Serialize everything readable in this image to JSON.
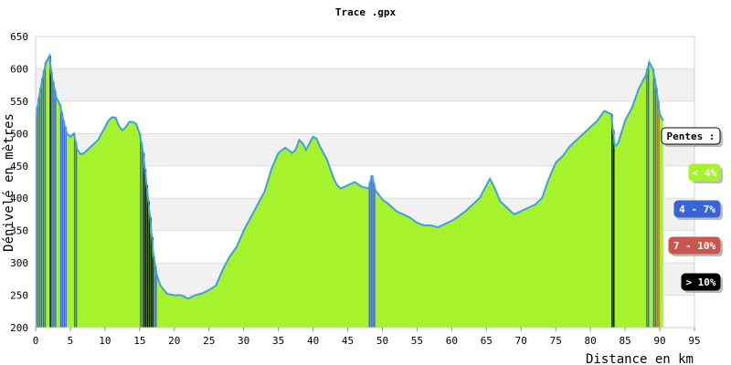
{
  "chart_data": {
    "type": "area",
    "title": "Trace .gpx",
    "xlabel": "Distance en km",
    "ylabel": "Dénivelé en mètres",
    "xlim": [
      0,
      95
    ],
    "ylim": [
      200,
      650
    ],
    "x_ticks": [
      0,
      5,
      10,
      15,
      20,
      25,
      30,
      35,
      40,
      45,
      50,
      55,
      60,
      65,
      70,
      75,
      80,
      85,
      90,
      95
    ],
    "y_ticks": [
      200,
      250,
      300,
      350,
      400,
      450,
      500,
      550,
      600,
      650
    ],
    "grid": "horizontal bands",
    "legend_position": "right",
    "legend": {
      "title": "Pentes :",
      "items": [
        {
          "label": "< 4%",
          "color": "#a6f22d"
        },
        {
          "label": "4 - 7%",
          "color": "#3b63d8"
        },
        {
          "label": "7 - 10%",
          "color": "#c8584f"
        },
        {
          "label": "> 10%",
          "color": "#000000"
        }
      ]
    },
    "series": [
      {
        "x": [
          0,
          0.5,
          1,
          1.5,
          2,
          2.3,
          2.6,
          3,
          3.5,
          4,
          4.5,
          5,
          5.5,
          6,
          6.5,
          7,
          8,
          9,
          10,
          10.5,
          11,
          11.5,
          12,
          12.5,
          13,
          13.5,
          14,
          14.5,
          15,
          15.5,
          16,
          16.5,
          17,
          17.5,
          18,
          18.5,
          19,
          20,
          21,
          22,
          23,
          24,
          25,
          26,
          27,
          28,
          29,
          30,
          31,
          32,
          33,
          34,
          35,
          36,
          37,
          37.5,
          38,
          38.5,
          39,
          39.5,
          40,
          40.5,
          41,
          41.5,
          42,
          42.5,
          43,
          43.5,
          44,
          45,
          46,
          47,
          48,
          48.5,
          49,
          50,
          51,
          52,
          53,
          54,
          55,
          56,
          57,
          58,
          59,
          60,
          61,
          62,
          63,
          64,
          65,
          65.5,
          66,
          66.5,
          67,
          68,
          69,
          70,
          71,
          72,
          73,
          74,
          75,
          76,
          77,
          78,
          79,
          80,
          81,
          82,
          83,
          83.5,
          84,
          85,
          86,
          87,
          88,
          88.5,
          89,
          89.5,
          90,
          90.5
        ],
        "y": [
          525,
          555,
          585,
          610,
          620,
          590,
          575,
          555,
          545,
          520,
          500,
          495,
          500,
          475,
          468,
          470,
          480,
          490,
          510,
          520,
          525,
          525,
          512,
          505,
          510,
          518,
          518,
          515,
          500,
          470,
          420,
          370,
          310,
          280,
          265,
          258,
          252,
          250,
          250,
          245,
          250,
          253,
          258,
          265,
          290,
          310,
          325,
          350,
          370,
          390,
          410,
          445,
          470,
          478,
          470,
          475,
          490,
          485,
          475,
          485,
          495,
          492,
          480,
          470,
          460,
          445,
          430,
          420,
          415,
          420,
          425,
          418,
          415,
          435,
          412,
          398,
          390,
          380,
          375,
          370,
          362,
          358,
          358,
          355,
          360,
          365,
          372,
          380,
          390,
          400,
          420,
          430,
          420,
          408,
          395,
          385,
          375,
          380,
          385,
          390,
          400,
          430,
          455,
          465,
          480,
          490,
          500,
          510,
          520,
          535,
          530,
          480,
          485,
          520,
          540,
          570,
          590,
          610,
          600,
          570,
          530,
          520
        ]
      }
    ]
  }
}
